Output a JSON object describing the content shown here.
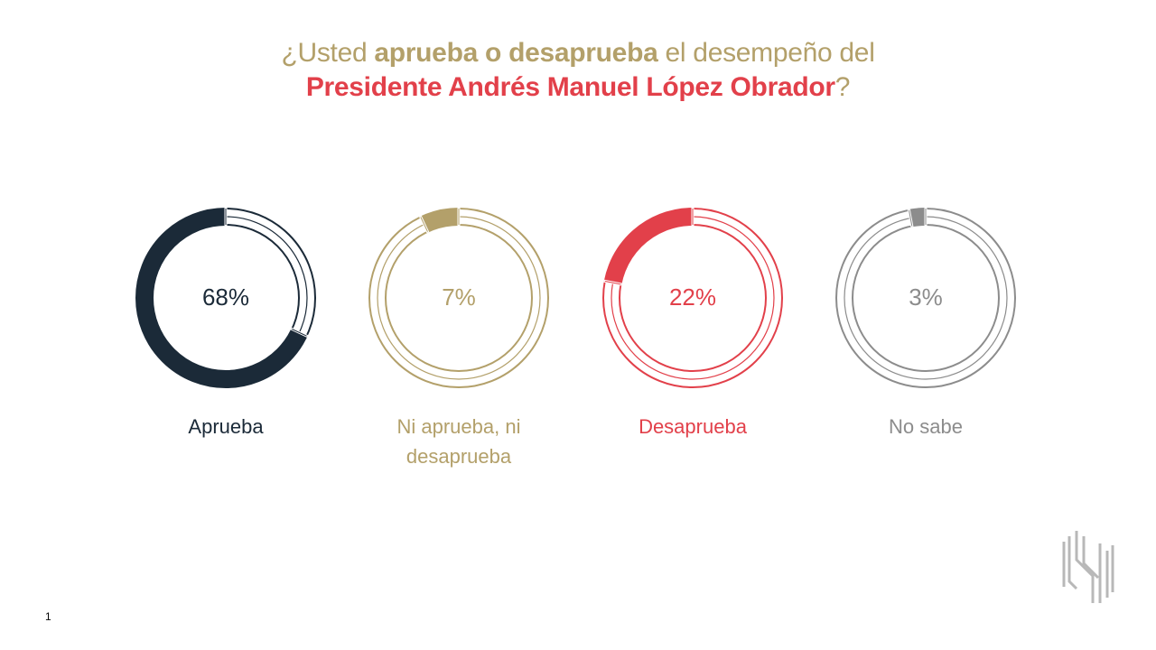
{
  "title": {
    "part1": "¿Usted ",
    "part2": "aprueba o desaprueba",
    "part3": " el desempeño del",
    "part4": "Presidente Andrés Manuel López Obrador",
    "part5": "?"
  },
  "page_number": "1",
  "colors": {
    "navy": "#1b2a38",
    "gold": "#b3a06a",
    "red": "#e2404a",
    "gray": "#8c8c8c"
  },
  "chart_data": {
    "type": "pie",
    "title": "¿Usted aprueba o desaprueba el desempeño del Presidente Andrés Manuel López Obrador?",
    "categories": [
      "Aprueba",
      "Ni aprueba, ni desaprueba",
      "Desaprueba",
      "No sabe"
    ],
    "values": [
      68,
      7,
      22,
      3
    ],
    "value_labels": [
      "68%",
      "7%",
      "22%",
      "3%"
    ],
    "label_lines": [
      [
        "Aprueba"
      ],
      [
        "Ni aprueba, ni",
        "desaprueba"
      ],
      [
        "Desaprueba"
      ],
      [
        "No sabe"
      ]
    ],
    "colors": [
      "#1b2a38",
      "#b3a06a",
      "#e2404a",
      "#8c8c8c"
    ],
    "unit": "%"
  }
}
